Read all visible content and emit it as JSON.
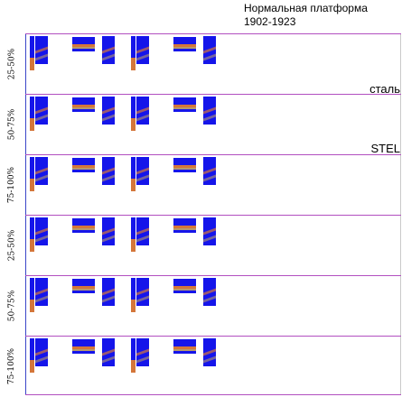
{
  "header": {
    "title": "Нормальная платформа",
    "years": "1902-1923"
  },
  "annotations": {
    "word_ru": "сталь",
    "word_en": "STEL"
  },
  "rows": [
    {
      "label": "25-50%"
    },
    {
      "label": "50-75%"
    },
    {
      "label": "75-100%"
    },
    {
      "label": "25-50%"
    },
    {
      "label": "50-75%"
    },
    {
      "label": "75-100%"
    }
  ],
  "colors": {
    "box_blue": "#1515ea",
    "stripe_orange": "#d4763a",
    "stripe_tan": "#b89a6a",
    "row_divider": "#b24fc0",
    "left_border": "#3a45c8"
  }
}
